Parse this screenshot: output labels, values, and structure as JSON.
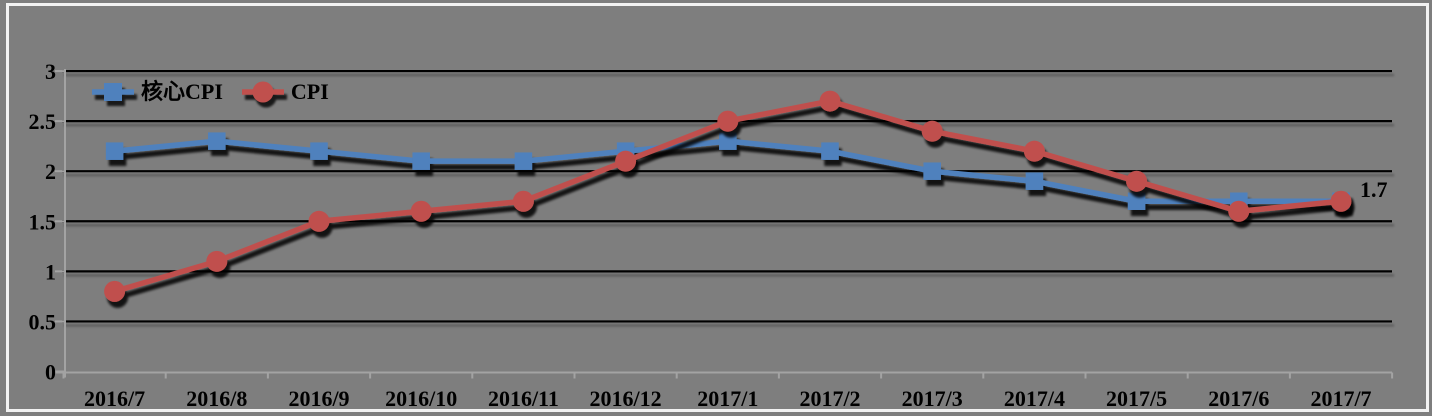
{
  "chart_data": {
    "type": "line",
    "title": "",
    "xlabel": "",
    "ylabel": "",
    "ylim": [
      0,
      3
    ],
    "grid": true,
    "legend_position": "top-left-inside",
    "categories": [
      "2016/7",
      "2016/8",
      "2016/9",
      "2016/10",
      "2016/11",
      "2016/12",
      "2017/1",
      "2017/2",
      "2017/3",
      "2017/4",
      "2017/5",
      "2017/6",
      "2017/7"
    ],
    "series": [
      {
        "id": "core-cpi",
        "name": "核心CPI",
        "marker": "square",
        "color": "#4f81bd",
        "values": [
          2.2,
          2.3,
          2.2,
          2.1,
          2.1,
          2.2,
          2.3,
          2.2,
          2.0,
          1.9,
          1.7,
          1.7,
          1.7
        ]
      },
      {
        "id": "cpi",
        "name": "CPI",
        "marker": "circle",
        "color": "#c0504d",
        "values": [
          0.8,
          1.1,
          1.5,
          1.6,
          1.7,
          2.1,
          2.5,
          2.7,
          2.4,
          2.2,
          1.9,
          1.6,
          1.7
        ]
      }
    ],
    "y_ticks": [
      {
        "value": 0,
        "label": "0"
      },
      {
        "value": 0.5,
        "label": "0.5"
      },
      {
        "value": 1,
        "label": "1"
      },
      {
        "value": 1.5,
        "label": "1.5"
      },
      {
        "value": 2,
        "label": "2"
      },
      {
        "value": 2.5,
        "label": "2.5"
      },
      {
        "value": 3,
        "label": "3"
      }
    ],
    "end_label": {
      "series": "cpi",
      "text": "1.7"
    }
  },
  "colors": {
    "background": "#7e7e7e",
    "frame_border": "#f2f2f2",
    "gridline": "#000000",
    "axis": "#a3a3a3",
    "text": "#000000",
    "series_core_cpi": "#4f81bd",
    "series_cpi": "#c0504d"
  }
}
